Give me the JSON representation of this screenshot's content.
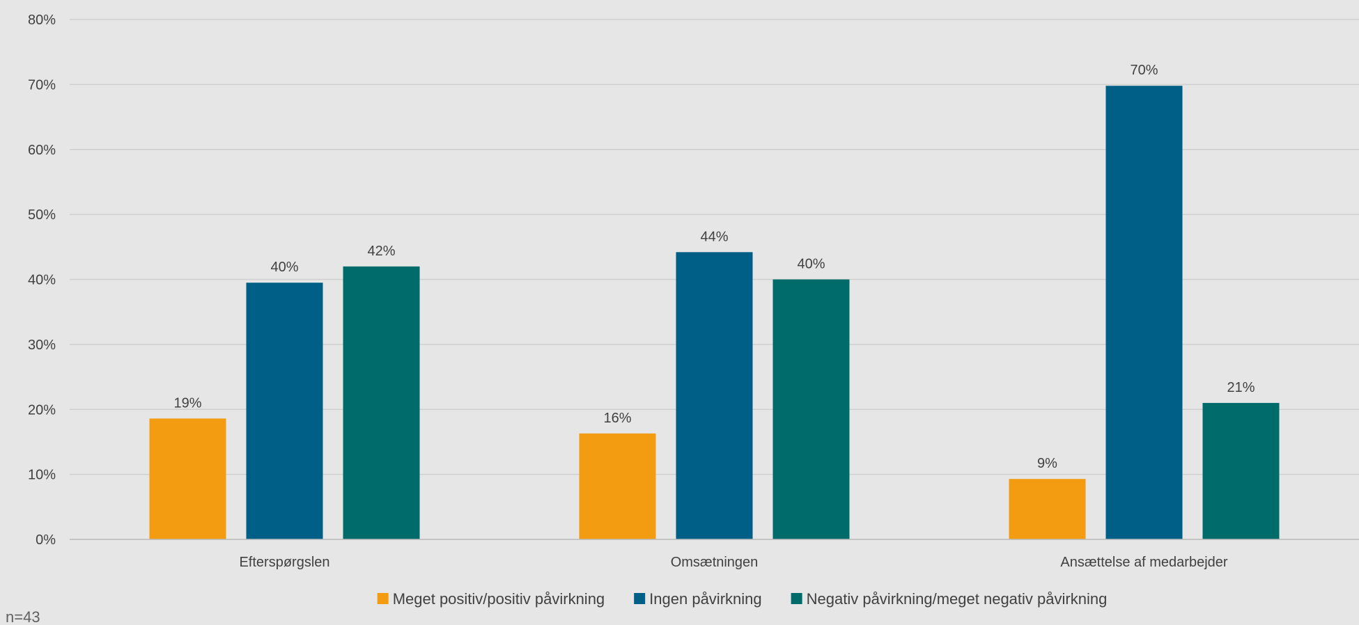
{
  "chart_data": {
    "type": "bar",
    "categories": [
      "Efterspørgslen",
      "Omsætningen",
      "Ansættelse af medarbejder"
    ],
    "series": [
      {
        "name": "Meget positiv/positiv påvirkning",
        "color": "#f39c12",
        "values": [
          19,
          16,
          9
        ]
      },
      {
        "name": "Ingen påvirkning",
        "color": "#005f87",
        "values": [
          40,
          44,
          70
        ]
      },
      {
        "name": "Negativ påvirkning/meget negativ påvirkning",
        "color": "#006b6b",
        "values": [
          42,
          40,
          21
        ]
      }
    ],
    "data_labels": [
      [
        "19%",
        "16%",
        "9%"
      ],
      [
        "40%",
        "44%",
        "70%"
      ],
      [
        "42%",
        "40%",
        "21%"
      ]
    ],
    "bar_heights": [
      [
        18.6,
        16.3,
        9.3
      ],
      [
        39.5,
        44.2,
        69.8
      ],
      [
        42.0,
        40.0,
        21.0
      ]
    ],
    "ylim": [
      0,
      80
    ],
    "yticks": [
      0,
      10,
      20,
      30,
      40,
      50,
      60,
      70,
      80
    ],
    "ytick_labels": [
      "0%",
      "10%",
      "20%",
      "30%",
      "40%",
      "50%",
      "60%",
      "70%",
      "80%"
    ],
    "grid": true,
    "legend_position": "bottom",
    "title": "",
    "xlabel": "",
    "ylabel": ""
  },
  "note": "n=43"
}
